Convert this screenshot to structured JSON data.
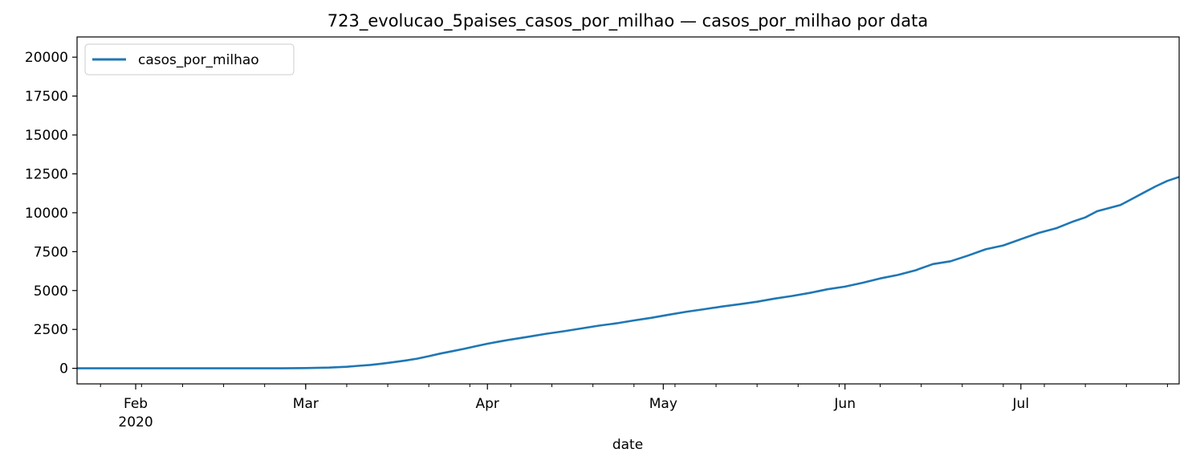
{
  "chart_data": {
    "type": "line",
    "title": "723_evolucao_5paises_casos_por_milhao — casos_por_milhao por data",
    "xlabel": "date",
    "ylabel": "",
    "x_range": [
      "2020-01-22",
      "2020-07-28"
    ],
    "ylim": [
      -1000,
      21300
    ],
    "y_ticks": [
      0,
      2500,
      5000,
      7500,
      10000,
      12500,
      15000,
      17500,
      20000
    ],
    "x_ticks": [
      {
        "date": "2020-02-01",
        "label": "Feb",
        "sublabel": "2020"
      },
      {
        "date": "2020-03-01",
        "label": "Mar",
        "sublabel": ""
      },
      {
        "date": "2020-04-01",
        "label": "Apr",
        "sublabel": ""
      },
      {
        "date": "2020-05-01",
        "label": "May",
        "sublabel": ""
      },
      {
        "date": "2020-06-01",
        "label": "Jun",
        "sublabel": ""
      },
      {
        "date": "2020-07-01",
        "label": "Jul",
        "sublabel": ""
      }
    ],
    "minor_tick_interval_days": 7,
    "grid": false,
    "legend": {
      "position": "top-left",
      "entries": [
        "casos_por_milhao"
      ]
    },
    "color": "#1f77b4",
    "series": [
      {
        "name": "casos_por_milhao",
        "points": [
          [
            "2020-01-22",
            0
          ],
          [
            "2020-02-01",
            0
          ],
          [
            "2020-02-10",
            0
          ],
          [
            "2020-02-20",
            0
          ],
          [
            "2020-02-26",
            2
          ],
          [
            "2020-03-01",
            15
          ],
          [
            "2020-03-05",
            50
          ],
          [
            "2020-03-08",
            100
          ],
          [
            "2020-03-10",
            160
          ],
          [
            "2020-03-12",
            220
          ],
          [
            "2020-03-14",
            300
          ],
          [
            "2020-03-16",
            400
          ],
          [
            "2020-03-18",
            500
          ],
          [
            "2020-03-20",
            620
          ],
          [
            "2020-03-22",
            780
          ],
          [
            "2020-03-24",
            950
          ],
          [
            "2020-03-26",
            1100
          ],
          [
            "2020-03-28",
            1250
          ],
          [
            "2020-03-30",
            1420
          ],
          [
            "2020-04-01",
            1580
          ],
          [
            "2020-04-03",
            1720
          ],
          [
            "2020-04-05",
            1850
          ],
          [
            "2020-04-08",
            2030
          ],
          [
            "2020-04-11",
            2220
          ],
          [
            "2020-04-14",
            2380
          ],
          [
            "2020-04-17",
            2560
          ],
          [
            "2020-04-20",
            2740
          ],
          [
            "2020-04-23",
            2890
          ],
          [
            "2020-04-26",
            3080
          ],
          [
            "2020-04-29",
            3250
          ],
          [
            "2020-05-02",
            3450
          ],
          [
            "2020-05-05",
            3640
          ],
          [
            "2020-05-08",
            3800
          ],
          [
            "2020-05-11",
            3970
          ],
          [
            "2020-05-14",
            4120
          ],
          [
            "2020-05-17",
            4280
          ],
          [
            "2020-05-20",
            4480
          ],
          [
            "2020-05-23",
            4650
          ],
          [
            "2020-05-26",
            4850
          ],
          [
            "2020-05-29",
            5080
          ],
          [
            "2020-06-01",
            5250
          ],
          [
            "2020-06-04",
            5500
          ],
          [
            "2020-06-07",
            5780
          ],
          [
            "2020-06-10",
            6000
          ],
          [
            "2020-06-13",
            6300
          ],
          [
            "2020-06-16",
            6700
          ],
          [
            "2020-06-19",
            6880
          ],
          [
            "2020-06-22",
            7250
          ],
          [
            "2020-06-25",
            7650
          ],
          [
            "2020-06-28",
            7900
          ],
          [
            "2020-07-01",
            8300
          ],
          [
            "2020-07-04",
            8700
          ],
          [
            "2020-07-07",
            9000
          ],
          [
            "2020-07-10",
            9450
          ],
          [
            "2020-07-12",
            9700
          ],
          [
            "2020-07-14",
            10100
          ],
          [
            "2020-07-16",
            10300
          ],
          [
            "2020-07-18",
            10500
          ],
          [
            "2020-07-20",
            10900
          ],
          [
            "2020-07-22",
            11300
          ],
          [
            "2020-07-24",
            11700
          ],
          [
            "2020-07-26",
            12050
          ],
          [
            "2020-07-28",
            12300
          ]
        ]
      }
    ]
  }
}
